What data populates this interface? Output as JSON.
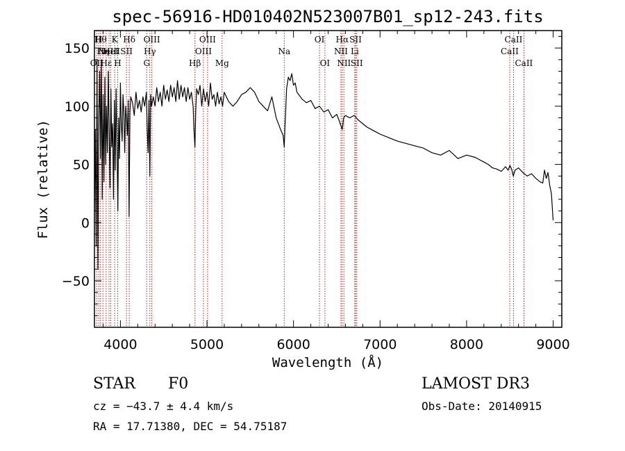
{
  "chart_data": {
    "type": "line",
    "title": "spec-56916-HD010402N523007B01_sp12-243.fits",
    "xlabel": "Wavelength (Å)",
    "ylabel": "Flux (relative)",
    "xlim": [
      3700,
      9100
    ],
    "ylim": [
      -90,
      165
    ],
    "x_ticks": [
      4000,
      5000,
      6000,
      7000,
      8000,
      9000
    ],
    "y_ticks": [
      -50,
      0,
      50,
      100,
      150
    ],
    "y_tick_labels": [
      "−50",
      "0",
      "50",
      "100",
      "150"
    ],
    "series": [
      {
        "name": "flux",
        "x": [
          3700,
          3710,
          3720,
          3730,
          3740,
          3750,
          3760,
          3770,
          3780,
          3790,
          3800,
          3810,
          3820,
          3830,
          3840,
          3850,
          3860,
          3870,
          3880,
          3890,
          3900,
          3910,
          3920,
          3930,
          3940,
          3950,
          3960,
          3970,
          3980,
          3990,
          4000,
          4010,
          4020,
          4030,
          4040,
          4050,
          4060,
          4070,
          4080,
          4090,
          4100,
          4110,
          4120,
          4140,
          4160,
          4180,
          4200,
          4220,
          4240,
          4260,
          4280,
          4300,
          4310,
          4320,
          4330,
          4340,
          4350,
          4360,
          4380,
          4400,
          4420,
          4440,
          4460,
          4480,
          4500,
          4520,
          4540,
          4560,
          4580,
          4600,
          4620,
          4640,
          4660,
          4680,
          4700,
          4720,
          4740,
          4760,
          4780,
          4800,
          4820,
          4840,
          4850,
          4861,
          4870,
          4880,
          4900,
          4920,
          4940,
          4960,
          4980,
          5000,
          5020,
          5040,
          5060,
          5080,
          5100,
          5120,
          5140,
          5160,
          5180,
          5200,
          5250,
          5300,
          5350,
          5400,
          5450,
          5500,
          5550,
          5600,
          5650,
          5700,
          5750,
          5800,
          5850,
          5880,
          5893,
          5900,
          5910,
          5920,
          5940,
          5960,
          5980,
          6000,
          6020,
          6040,
          6060,
          6080,
          6100,
          6150,
          6200,
          6250,
          6300,
          6350,
          6400,
          6450,
          6500,
          6540,
          6563,
          6580,
          6600,
          6650,
          6700,
          6750,
          6800,
          6850,
          6900,
          6950,
          7000,
          7100,
          7200,
          7300,
          7400,
          7500,
          7600,
          7700,
          7800,
          7900,
          8000,
          8100,
          8150,
          8200,
          8250,
          8300,
          8350,
          8400,
          8450,
          8480,
          8500,
          8520,
          8540,
          8560,
          8600,
          8650,
          8700,
          8750,
          8800,
          8850,
          8880,
          8900,
          8920,
          8940,
          8960,
          8980,
          9000
        ],
        "y": [
          10,
          80,
          -20,
          140,
          -40,
          90,
          130,
          55,
          140,
          20,
          110,
          35,
          125,
          50,
          100,
          60,
          130,
          80,
          30,
          115,
          65,
          85,
          20,
          105,
          45,
          115,
          70,
          10,
          90,
          55,
          120,
          85,
          70,
          110,
          95,
          60,
          100,
          90,
          75,
          105,
          5,
          95,
          108,
          103,
          92,
          112,
          98,
          105,
          95,
          108,
          100,
          112,
          80,
          60,
          105,
          40,
          110,
          100,
          108,
          100,
          116,
          104,
          112,
          100,
          118,
          106,
          114,
          104,
          118,
          108,
          116,
          104,
          122,
          106,
          118,
          108,
          116,
          104,
          116,
          106,
          112,
          100,
          80,
          65,
          95,
          115,
          110,
          118,
          100,
          115,
          104,
          112,
          100,
          120,
          106,
          110,
          100,
          112,
          102,
          108,
          100,
          112,
          104,
          100,
          104,
          110,
          112,
          116,
          112,
          104,
          100,
          96,
          108,
          90,
          80,
          75,
          65,
          80,
          96,
          115,
          125,
          122,
          128,
          118,
          120,
          112,
          110,
          108,
          106,
          103,
          105,
          98,
          100,
          95,
          97,
          90,
          93,
          85,
          80,
          90,
          92,
          90,
          92,
          88,
          85,
          82,
          80,
          78,
          76,
          73,
          70,
          68,
          66,
          64,
          60,
          58,
          62,
          55,
          58,
          56,
          54,
          52,
          50,
          47,
          46,
          44,
          48,
          45,
          49,
          46,
          40,
          45,
          47,
          43,
          40,
          42,
          38,
          35,
          34,
          45,
          38,
          43,
          32,
          25,
          2
        ]
      }
    ],
    "annotations": {
      "spectral_lines": [
        {
          "wavelength": 3727,
          "labels": [
            "OII"
          ],
          "row": 3
        },
        {
          "wavelength": 3750,
          "labels": [
            "H"
          ],
          "row": 1
        },
        {
          "wavelength": 3770,
          "labels": [
            "Hθ"
          ],
          "row": 1
        },
        {
          "wavelength": 3798,
          "labels": [
            "Hη"
          ],
          "row": 2
        },
        {
          "wavelength": 3835,
          "labels": [
            "Hε"
          ],
          "row": 3
        },
        {
          "wavelength": 3869,
          "labels": [
            "NeIII"
          ],
          "row": 2
        },
        {
          "wavelength": 3889,
          "labels": [
            "HeI"
          ],
          "row": 2
        },
        {
          "wavelength": 3934,
          "labels": [
            "K"
          ],
          "row": 1
        },
        {
          "wavelength": 3969,
          "labels": [
            "H"
          ],
          "row": 3
        },
        {
          "wavelength": 4070,
          "labels": [
            "SII"
          ],
          "row": 2
        },
        {
          "wavelength": 4102,
          "labels": [
            "Hδ"
          ],
          "row": 1
        },
        {
          "wavelength": 4304,
          "labels": [
            "G"
          ],
          "row": 3
        },
        {
          "wavelength": 4340,
          "labels": [
            "Hγ"
          ],
          "row": 2
        },
        {
          "wavelength": 4363,
          "labels": [
            "OIII"
          ],
          "row": 1
        },
        {
          "wavelength": 4861,
          "labels": [
            "Hβ"
          ],
          "row": 3
        },
        {
          "wavelength": 4959,
          "labels": [
            "OIII"
          ],
          "row": 2
        },
        {
          "wavelength": 5007,
          "labels": [
            "OIII"
          ],
          "row": 1
        },
        {
          "wavelength": 5175,
          "labels": [
            "Mg"
          ],
          "row": 3
        },
        {
          "wavelength": 5893,
          "labels": [
            "Na"
          ],
          "row": 2
        },
        {
          "wavelength": 6300,
          "labels": [
            "OI"
          ],
          "row": 1
        },
        {
          "wavelength": 6363,
          "labels": [
            "OI"
          ],
          "row": 3
        },
        {
          "wavelength": 6548,
          "labels": [
            "NII"
          ],
          "row": 2
        },
        {
          "wavelength": 6563,
          "labels": [
            "Hα"
          ],
          "row": 1
        },
        {
          "wavelength": 6583,
          "labels": [
            "NII"
          ],
          "row": 3
        },
        {
          "wavelength": 6708,
          "labels": [
            "Li"
          ],
          "row": 2
        },
        {
          "wavelength": 6717,
          "labels": [
            "SII"
          ],
          "row": 1
        },
        {
          "wavelength": 6731,
          "labels": [
            "SII"
          ],
          "row": 3
        },
        {
          "wavelength": 8498,
          "labels": [
            "CaII"
          ],
          "row": 2
        },
        {
          "wavelength": 8542,
          "labels": [
            "CaII"
          ],
          "row": 1
        },
        {
          "wavelength": 8662,
          "labels": [
            "CaII"
          ],
          "row": 3
        }
      ]
    }
  },
  "info": {
    "object_class": "STAR",
    "subclass": "F0",
    "survey": "LAMOST DR3",
    "cz": "cz = −43.7 ± 4.4 km/s",
    "obs_date": "Obs-Date: 20140915",
    "coords": "RA =  17.71380, DEC =  54.75187"
  },
  "colors": {
    "line_marker": "#b22222",
    "spectrum": "#000000",
    "background": "#ffffff"
  }
}
